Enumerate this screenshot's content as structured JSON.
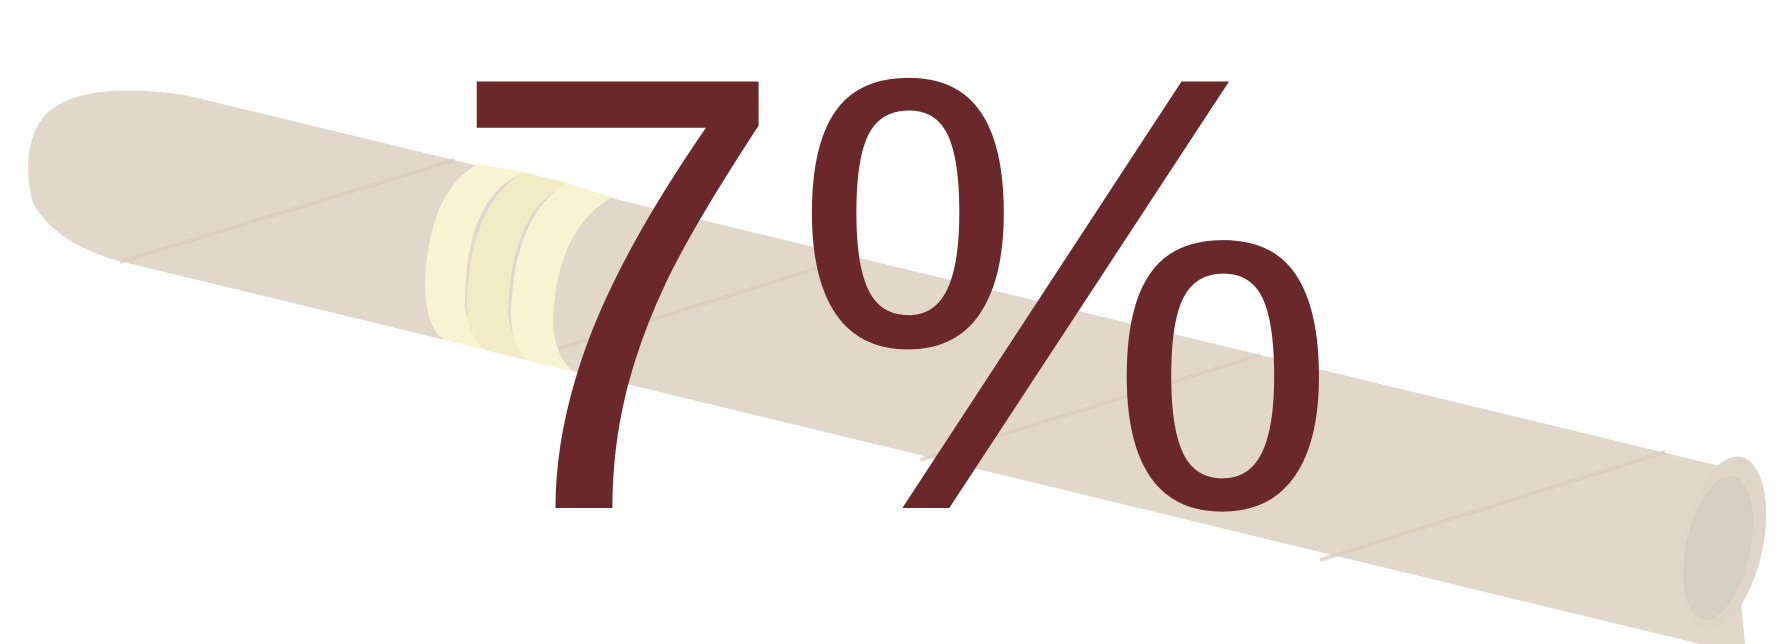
{
  "stat": {
    "value": "7%"
  },
  "colors": {
    "background": "#ffffff",
    "text": "#6b282a",
    "tube": "#e2d7cb",
    "tube_stripe": "#d9cdc0",
    "end_cap_outer": "#e0d5c9",
    "end_cap_inner": "#d6cdc3",
    "band_light": "#f8f4d2",
    "band_mid": "#f1ecc6"
  },
  "icons": {
    "illustration": "cigarette-icon"
  }
}
